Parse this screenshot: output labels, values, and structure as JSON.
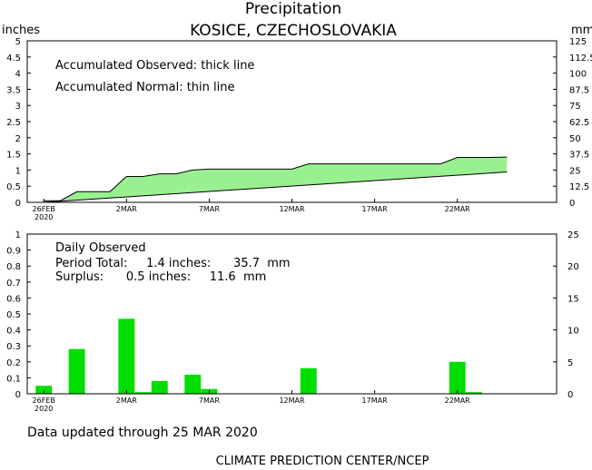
{
  "header": {
    "title": "Precipitation",
    "subtitle": "KOSICE,  CZECHOSLOVAKIA"
  },
  "colors": {
    "fill": "#99f090",
    "bar": "#00dd00",
    "line": "#000000",
    "background": "#ffffff"
  },
  "top_panel": {
    "left_unit": "inches",
    "right_unit": "mm",
    "legend_observed": "Accumulated Observed: thick line",
    "legend_normal": "Accumulated Normal: thin line"
  },
  "bottom_panel": {
    "label_daily": "Daily Observed",
    "label_total": "Period Total:     1.4 inches:      35.7  mm",
    "label_surplus": "Surplus:      0.5 inches:     11.6  mm"
  },
  "footer": {
    "updated": "Data updated through 25 MAR 2020",
    "credit": "CLIMATE PREDICTION CENTER/NCEP"
  },
  "chart_data": [
    {
      "type": "area",
      "title": "Precipitation",
      "subtitle": "KOSICE,  CZECHOSLOVAKIA",
      "ylabel": "inches",
      "y2label": "mm",
      "ylim": [
        0,
        5
      ],
      "y2lim": [
        0,
        125
      ],
      "yticks": [
        "0",
        "0.5",
        "1",
        "1.5",
        "2",
        "2.5",
        "3",
        "3.5",
        "4",
        "4.5",
        "5"
      ],
      "y2ticks": [
        "0",
        "12.5",
        "25",
        "37.5",
        "50",
        "62.5",
        "75",
        "87.5",
        "100",
        "112.5",
        "125"
      ],
      "xlim": [
        "2020-02-25",
        "2020-03-28"
      ],
      "xticks": [
        {
          "date": "2020-02-26",
          "label": "26FEB",
          "sub": "2020"
        },
        {
          "date": "2020-03-02",
          "label": "2MAR",
          "sub": ""
        },
        {
          "date": "2020-03-07",
          "label": "7MAR",
          "sub": ""
        },
        {
          "date": "2020-03-12",
          "label": "12MAR",
          "sub": ""
        },
        {
          "date": "2020-03-17",
          "label": "17MAR",
          "sub": ""
        },
        {
          "date": "2020-03-22",
          "label": "22MAR",
          "sub": ""
        }
      ],
      "series": [
        {
          "name": "Accumulated Observed",
          "x": [
            "2020-02-26",
            "2020-02-27",
            "2020-02-28",
            "2020-02-29",
            "2020-03-01",
            "2020-03-02",
            "2020-03-03",
            "2020-03-04",
            "2020-03-05",
            "2020-03-06",
            "2020-03-07",
            "2020-03-08",
            "2020-03-09",
            "2020-03-10",
            "2020-03-11",
            "2020-03-12",
            "2020-03-13",
            "2020-03-14",
            "2020-03-15",
            "2020-03-16",
            "2020-03-17",
            "2020-03-18",
            "2020-03-19",
            "2020-03-20",
            "2020-03-21",
            "2020-03-22",
            "2020-03-23",
            "2020-03-24",
            "2020-03-25"
          ],
          "values": [
            0.05,
            0.05,
            0.33,
            0.33,
            0.33,
            0.8,
            0.8,
            0.88,
            0.88,
            1.0,
            1.03,
            1.03,
            1.03,
            1.03,
            1.03,
            1.03,
            1.19,
            1.19,
            1.19,
            1.19,
            1.19,
            1.19,
            1.19,
            1.19,
            1.19,
            1.39,
            1.39,
            1.39,
            1.4
          ]
        },
        {
          "name": "Accumulated Normal",
          "x": [
            "2020-02-26",
            "2020-03-25"
          ],
          "values": [
            0.0,
            0.94
          ]
        }
      ]
    },
    {
      "type": "bar",
      "title": "Daily Observed",
      "ylim": [
        0,
        1
      ],
      "y2lim": [
        0,
        25
      ],
      "yticks": [
        "0",
        "0.1",
        "0.2",
        "0.3",
        "0.4",
        "0.5",
        "0.6",
        "0.7",
        "0.8",
        "0.9",
        "1"
      ],
      "y2ticks": [
        "0",
        "5",
        "10",
        "15",
        "20",
        "25"
      ],
      "series": [
        {
          "name": "Daily Observed",
          "x": [
            "2020-02-26",
            "2020-02-28",
            "2020-03-02",
            "2020-03-03",
            "2020-03-04",
            "2020-03-06",
            "2020-03-07",
            "2020-03-13",
            "2020-03-22",
            "2020-03-23"
          ],
          "values": [
            0.05,
            0.28,
            0.47,
            0.01,
            0.08,
            0.12,
            0.03,
            0.16,
            0.2,
            0.01
          ]
        }
      ]
    }
  ]
}
